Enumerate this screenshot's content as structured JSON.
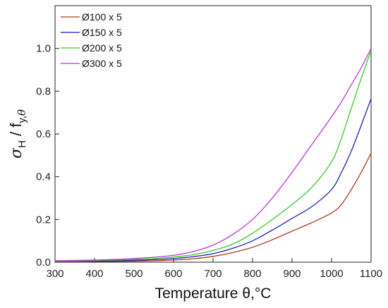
{
  "chart_data": {
    "type": "line",
    "title": "",
    "xlabel": "Temperature θ,°C",
    "ylabel": "σ_H / f_y,θ",
    "xlim": [
      300,
      1100
    ],
    "ylim": [
      0,
      1.2
    ],
    "x_ticks": [
      300,
      400,
      500,
      600,
      700,
      800,
      900,
      1000,
      1100
    ],
    "y_ticks": [
      "0.0",
      "0.2",
      "0.4",
      "0.6",
      "0.8",
      "1.0"
    ],
    "grid": false,
    "legend_position": "top-left",
    "x": [
      300,
      350,
      400,
      450,
      500,
      550,
      600,
      650,
      700,
      750,
      800,
      850,
      900,
      950,
      1000,
      1025,
      1050,
      1075,
      1100
    ],
    "series": [
      {
        "name": "Ø100 x 5",
        "color": "#b03a1e",
        "values": [
          0.003,
          0.003,
          0.004,
          0.004,
          0.005,
          0.007,
          0.01,
          0.016,
          0.027,
          0.045,
          0.07,
          0.105,
          0.145,
          0.185,
          0.23,
          0.27,
          0.34,
          0.42,
          0.51
        ]
      },
      {
        "name": "Ø150 x 5",
        "color": "#1f1fb0",
        "values": [
          0.004,
          0.005,
          0.006,
          0.007,
          0.009,
          0.012,
          0.017,
          0.026,
          0.04,
          0.065,
          0.1,
          0.15,
          0.205,
          0.26,
          0.34,
          0.42,
          0.52,
          0.64,
          0.765
        ]
      },
      {
        "name": "Ø200 x 5",
        "color": "#33cc22",
        "values": [
          0.005,
          0.006,
          0.008,
          0.01,
          0.013,
          0.017,
          0.024,
          0.035,
          0.055,
          0.085,
          0.135,
          0.2,
          0.27,
          0.35,
          0.47,
          0.58,
          0.72,
          0.86,
          0.99
        ]
      },
      {
        "name": "Ø300 x 5",
        "color": "#bb33dd",
        "values": [
          0.007,
          0.008,
          0.01,
          0.013,
          0.017,
          0.023,
          0.032,
          0.05,
          0.08,
          0.13,
          0.2,
          0.3,
          0.42,
          0.55,
          0.68,
          0.75,
          0.83,
          0.91,
          1.0
        ]
      }
    ]
  }
}
